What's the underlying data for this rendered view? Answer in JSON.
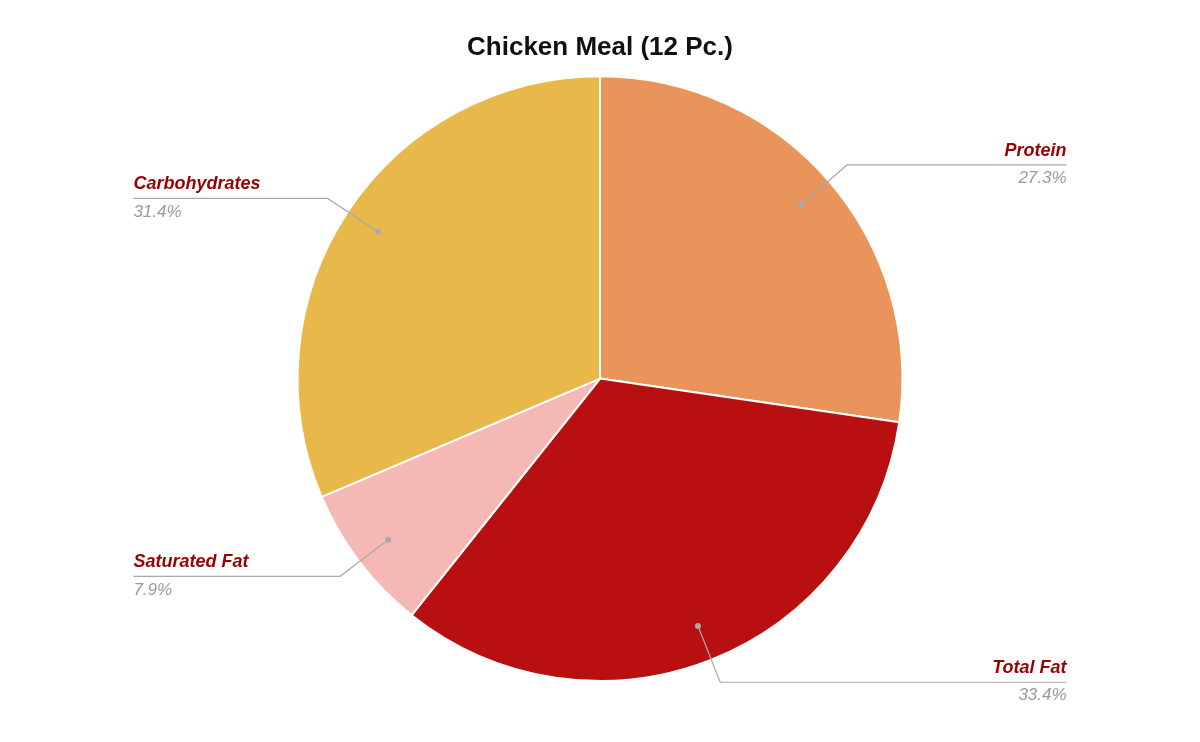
{
  "chart_data": {
    "type": "pie",
    "title": "Chicken Meal (12 Pc.)",
    "categories": [
      "Protein",
      "Total Fat",
      "Saturated Fat",
      "Carbohydrates"
    ],
    "values": [
      27.3,
      33.4,
      7.9,
      31.4
    ],
    "value_labels": [
      "27.3%",
      "33.4%",
      "7.9%",
      "31.4%"
    ],
    "colors": [
      "#E8945A",
      "#B81010",
      "#F5B8B5",
      "#E8B84B"
    ],
    "data_labels": true
  }
}
